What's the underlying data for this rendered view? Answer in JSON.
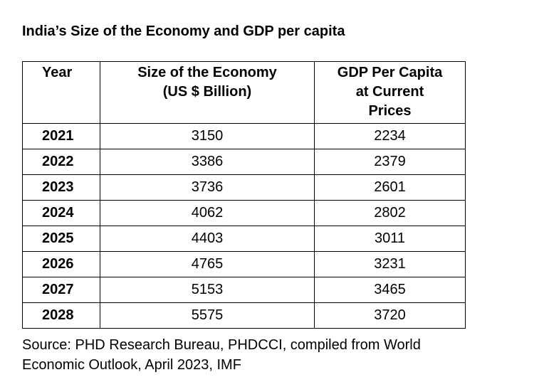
{
  "title": "India’s Size of the Economy and GDP per capita",
  "table": {
    "headers": {
      "year": "Year",
      "size_line1": "Size of the Economy",
      "size_line2": "(US $ Billion)",
      "gdp_line1": "GDP Per Capita",
      "gdp_line2": "at Current",
      "gdp_line3": "Prices"
    },
    "rows": [
      {
        "year": "2021",
        "size": "3150",
        "gdp": "2234"
      },
      {
        "year": "2022",
        "size": "3386",
        "gdp": "2379"
      },
      {
        "year": "2023",
        "size": "3736",
        "gdp": "2601"
      },
      {
        "year": "2024",
        "size": "4062",
        "gdp": "2802"
      },
      {
        "year": "2025",
        "size": "4403",
        "gdp": "3011"
      },
      {
        "year": "2026",
        "size": "4765",
        "gdp": "3231"
      },
      {
        "year": "2027",
        "size": "5153",
        "gdp": "3465"
      },
      {
        "year": "2028",
        "size": "5575",
        "gdp": "3720"
      }
    ]
  },
  "source": {
    "line1": "Source: PHD Research Bureau, PHDCCI, compiled from World",
    "line2": "Economic Outlook, April 2023, IMF"
  }
}
